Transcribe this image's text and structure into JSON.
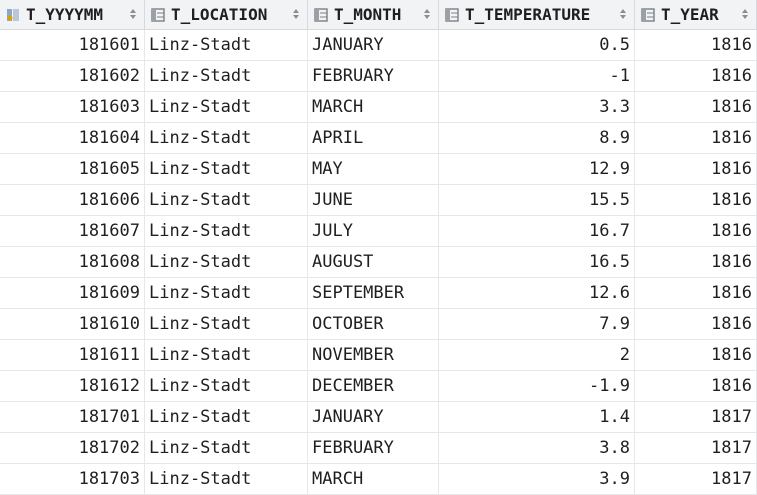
{
  "columns": [
    {
      "label": "T_YYYYMM",
      "icon": "key-column-icon"
    },
    {
      "label": "T_LOCATION",
      "icon": "column-icon"
    },
    {
      "label": "T_MONTH",
      "icon": "column-icon"
    },
    {
      "label": "T_TEMPERATURE",
      "icon": "column-icon"
    },
    {
      "label": "T_YEAR",
      "icon": "column-icon"
    }
  ],
  "rows": [
    [
      "181601",
      "Linz-Stadt",
      "JANUARY",
      "0.5",
      "1816"
    ],
    [
      "181602",
      "Linz-Stadt",
      "FEBRUARY",
      "-1",
      "1816"
    ],
    [
      "181603",
      "Linz-Stadt",
      "MARCH",
      "3.3",
      "1816"
    ],
    [
      "181604",
      "Linz-Stadt",
      "APRIL",
      "8.9",
      "1816"
    ],
    [
      "181605",
      "Linz-Stadt",
      "MAY",
      "12.9",
      "1816"
    ],
    [
      "181606",
      "Linz-Stadt",
      "JUNE",
      "15.5",
      "1816"
    ],
    [
      "181607",
      "Linz-Stadt",
      "JULY",
      "16.7",
      "1816"
    ],
    [
      "181608",
      "Linz-Stadt",
      "AUGUST",
      "16.5",
      "1816"
    ],
    [
      "181609",
      "Linz-Stadt",
      "SEPTEMBER",
      "12.6",
      "1816"
    ],
    [
      "181610",
      "Linz-Stadt",
      "OCTOBER",
      "7.9",
      "1816"
    ],
    [
      "181611",
      "Linz-Stadt",
      "NOVEMBER",
      "2",
      "1816"
    ],
    [
      "181612",
      "Linz-Stadt",
      "DECEMBER",
      "-1.9",
      "1816"
    ],
    [
      "181701",
      "Linz-Stadt",
      "JANUARY",
      "1.4",
      "1817"
    ],
    [
      "181702",
      "Linz-Stadt",
      "FEBRUARY",
      "3.8",
      "1817"
    ],
    [
      "181703",
      "Linz-Stadt",
      "MARCH",
      "3.9",
      "1817"
    ]
  ]
}
